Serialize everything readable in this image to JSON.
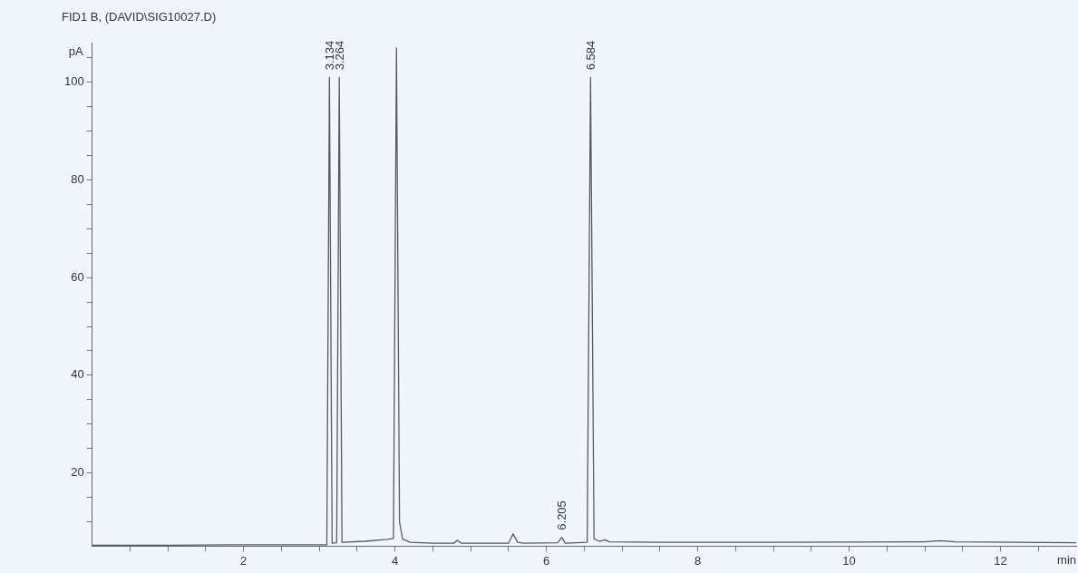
{
  "chart_data": {
    "type": "line",
    "title": "FID1 B, (DAVID\\SIG10027.D)",
    "xlabel": "min",
    "ylabel": "pA",
    "x": [
      0,
      1,
      2,
      3,
      3.1,
      3.134,
      3.17,
      3.23,
      3.264,
      3.3,
      3.6,
      3.9,
      3.98,
      4.02,
      4.06,
      4.1,
      4.2,
      4.5,
      4.78,
      4.82,
      4.88,
      5.5,
      5.56,
      5.62,
      5.7,
      6.15,
      6.205,
      6.25,
      6.54,
      6.584,
      6.63,
      6.7,
      6.78,
      6.83,
      7.5,
      9,
      11,
      11.2,
      11.4,
      13
    ],
    "series": [
      {
        "color": "#5a5a5a",
        "values": [
          5.2,
          5.2,
          5.3,
          5.3,
          5.3,
          101,
          5.6,
          5.7,
          101,
          5.8,
          6,
          6.4,
          6.6,
          107,
          10,
          6.5,
          5.8,
          5.6,
          5.6,
          6.2,
          5.6,
          5.6,
          7.5,
          5.8,
          5.6,
          5.7,
          6.8,
          5.6,
          5.8,
          101,
          6.5,
          6,
          6.3,
          5.9,
          5.8,
          5.8,
          5.9,
          6.1,
          5.9,
          5.7
        ]
      }
    ],
    "xlim": [
      0,
      13
    ],
    "ylim": [
      5,
      108
    ],
    "xticks": [
      {
        "value": 0.5,
        "label": null
      },
      {
        "value": 1,
        "label": null
      },
      {
        "value": 1.5,
        "label": null
      },
      2,
      {
        "value": 2.5,
        "label": null
      },
      {
        "value": 3,
        "label": null
      },
      {
        "value": 3.5,
        "label": null
      },
      4,
      {
        "value": 4.5,
        "label": null
      },
      {
        "value": 5,
        "label": null
      },
      {
        "value": 5.5,
        "label": null
      },
      6,
      {
        "value": 6.5,
        "label": null
      },
      {
        "value": 7,
        "label": null
      },
      {
        "value": 7.5,
        "label": null
      },
      8,
      {
        "value": 8.5,
        "label": null
      },
      {
        "value": 9,
        "label": null
      },
      {
        "value": 9.5,
        "label": null
      },
      10,
      {
        "value": 10.5,
        "label": null
      },
      {
        "value": 11,
        "label": null
      },
      {
        "value": 11.5,
        "label": null
      },
      12,
      {
        "value": 12.5,
        "label": null
      }
    ],
    "yticks": [
      {
        "value": 10,
        "label": null
      },
      {
        "value": 15,
        "label": null
      },
      20,
      {
        "value": 25,
        "label": null
      },
      {
        "value": 30,
        "label": null
      },
      {
        "value": 35,
        "label": null
      },
      40,
      {
        "value": 45,
        "label": null
      },
      {
        "value": 50,
        "label": null
      },
      {
        "value": 55,
        "label": null
      },
      60,
      {
        "value": 65,
        "label": null
      },
      {
        "value": 70,
        "label": null
      },
      {
        "value": 75,
        "label": null
      },
      80,
      {
        "value": 85,
        "label": null
      },
      {
        "value": 90,
        "label": null
      },
      {
        "value": 95,
        "label": null
      },
      100,
      {
        "value": 105,
        "label": null
      }
    ],
    "annotations": [
      {
        "text": "3.134",
        "x": 3.134,
        "y": 101
      },
      {
        "text": "3.264",
        "x": 3.264,
        "y": 101
      },
      {
        "text": "6.205",
        "x": 6.205,
        "y": 6.8
      },
      {
        "text": "6.584",
        "x": 6.584,
        "y": 101
      }
    ],
    "grid": false,
    "legend": false,
    "marker": "none",
    "line_style": "solid"
  }
}
